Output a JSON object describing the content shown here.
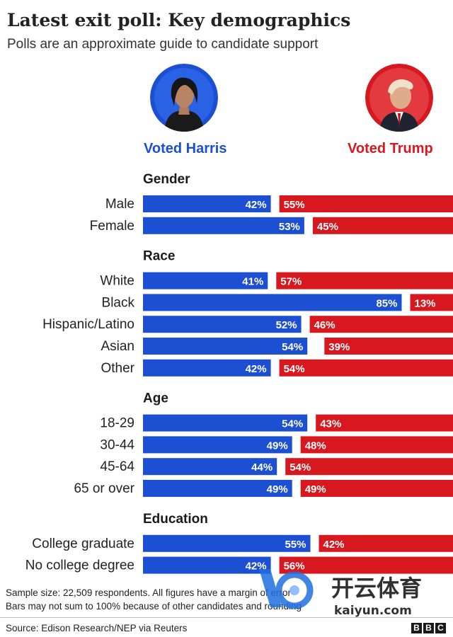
{
  "title": "Latest exit poll: Key demographics",
  "subtitle": "Polls are an approximate guide to candidate support",
  "candidates": {
    "harris_label": "Voted Harris",
    "trump_label": "Voted Trump",
    "harris_color": "#1c4fd1",
    "trump_color": "#d7191f"
  },
  "chart_data": {
    "type": "bar",
    "orientation": "diverging-horizontal",
    "series": [
      {
        "name": "Voted Harris",
        "color": "#1c4fd1"
      },
      {
        "name": "Voted Trump",
        "color": "#d7191f"
      }
    ],
    "groups": [
      {
        "name": "Gender",
        "rows": [
          {
            "label": "Male",
            "harris": 42,
            "trump": 55
          },
          {
            "label": "Female",
            "harris": 53,
            "trump": 45
          }
        ]
      },
      {
        "name": "Race",
        "rows": [
          {
            "label": "White",
            "harris": 41,
            "trump": 57
          },
          {
            "label": "Black",
            "harris": 85,
            "trump": 13
          },
          {
            "label": "Hispanic/Latino",
            "harris": 52,
            "trump": 46
          },
          {
            "label": "Asian",
            "harris": 54,
            "trump": 39
          },
          {
            "label": "Other",
            "harris": 42,
            "trump": 54
          }
        ]
      },
      {
        "name": "Age",
        "rows": [
          {
            "label": "18-29",
            "harris": 54,
            "trump": 43
          },
          {
            "label": "30-44",
            "harris": 49,
            "trump": 48
          },
          {
            "label": "45-64",
            "harris": 44,
            "trump": 54
          },
          {
            "label": "65 or over",
            "harris": 49,
            "trump": 49
          }
        ]
      },
      {
        "name": "Education",
        "rows": [
          {
            "label": "College graduate",
            "harris": 55,
            "trump": 42
          },
          {
            "label": "No college degree",
            "harris": 42,
            "trump": 56
          }
        ]
      }
    ],
    "value_suffix": "%"
  },
  "footnotes": {
    "line1": "Sample size: 22,509 respondents. All figures have a margin of error",
    "line2": "Bars may not sum to 100% because of other candidates and rounding",
    "source": "Source: Edison Research/NEP via Reuters"
  },
  "logo": {
    "letters": [
      "B",
      "B",
      "C"
    ]
  },
  "watermark": {
    "text": "开云体育",
    "url": "kaiyun.com"
  }
}
